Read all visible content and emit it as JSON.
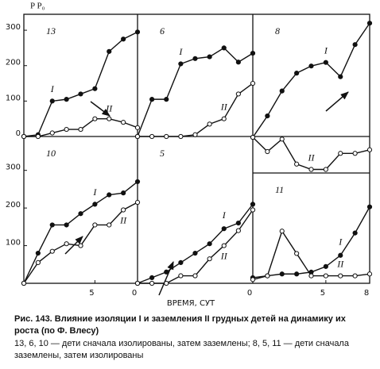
{
  "figure": {
    "y_label": "P P₀",
    "x_label": "ВРЕМЯ, СУТ"
  },
  "chart_data": [
    {
      "type": "line",
      "title": "13",
      "x": [
        0,
        1,
        2,
        3,
        4,
        5,
        6,
        7,
        8
      ],
      "xlim": [
        0,
        8
      ],
      "ylim": [
        0,
        345
      ],
      "yticks": [
        0,
        100,
        200,
        300
      ],
      "series": [
        {
          "name": "I",
          "color": "#111111",
          "values": [
            0,
            5,
            100,
            105,
            120,
            135,
            240,
            275,
            295
          ]
        },
        {
          "name": "II",
          "color": "#111111",
          "values": [
            0,
            0,
            10,
            20,
            20,
            50,
            50,
            40,
            25
          ]
        }
      ]
    },
    {
      "type": "line",
      "title": "6",
      "x": [
        0,
        1,
        2,
        3,
        4,
        5,
        6,
        7,
        8
      ],
      "xlim": [
        0,
        8
      ],
      "ylim": [
        0,
        345
      ],
      "series": [
        {
          "name": "I",
          "color": "#111111",
          "values": [
            0,
            105,
            105,
            205,
            220,
            225,
            250,
            210,
            235
          ]
        },
        {
          "name": "II",
          "color": "#111111",
          "values": [
            0,
            0,
            0,
            0,
            5,
            35,
            50,
            120,
            150
          ]
        }
      ]
    },
    {
      "type": "line",
      "title": "8",
      "x": [
        0,
        1,
        2,
        3,
        4,
        5,
        6,
        7,
        8
      ],
      "xlim": [
        0,
        8
      ],
      "ylim": [
        -100,
        345
      ],
      "series": [
        {
          "name": "I",
          "color": "#111111",
          "values": [
            0,
            60,
            130,
            180,
            200,
            210,
            170,
            260,
            320
          ]
        },
        {
          "name": "II",
          "color": "#111111",
          "values": [
            0,
            -40,
            -5,
            -75,
            -90,
            -90,
            -45,
            -45,
            -35
          ]
        }
      ]
    },
    {
      "type": "line",
      "title": "10",
      "x": [
        0,
        1,
        2,
        3,
        4,
        5,
        6,
        7,
        8
      ],
      "xlim": [
        0,
        8
      ],
      "ylim": [
        0,
        390
      ],
      "yticks": [
        100,
        200,
        300
      ],
      "xticks": [
        5
      ],
      "series": [
        {
          "name": "I",
          "color": "#111111",
          "values": [
            0,
            80,
            155,
            155,
            185,
            210,
            235,
            240,
            270
          ]
        },
        {
          "name": "II",
          "color": "#111111",
          "values": [
            0,
            55,
            85,
            105,
            100,
            155,
            155,
            195,
            215
          ]
        }
      ]
    },
    {
      "type": "line",
      "title": "5",
      "x": [
        0,
        1,
        2,
        3,
        4,
        5,
        6,
        7,
        8
      ],
      "xlim": [
        0,
        8
      ],
      "ylim": [
        0,
        390
      ],
      "xticks": [
        0
      ],
      "series": [
        {
          "name": "I",
          "color": "#111111",
          "values": [
            0,
            15,
            30,
            55,
            80,
            105,
            145,
            160,
            210
          ]
        },
        {
          "name": "II",
          "color": "#111111",
          "values": [
            0,
            0,
            0,
            20,
            20,
            65,
            100,
            140,
            195
          ]
        }
      ]
    },
    {
      "type": "line",
      "title": "11",
      "x": [
        0,
        1,
        2,
        3,
        4,
        5,
        6,
        7,
        8
      ],
      "xlim": [
        0,
        8
      ],
      "ylim": [
        0,
        296
      ],
      "xticks": [
        0,
        5,
        8
      ],
      "series": [
        {
          "name": "I",
          "color": "#111111",
          "values": [
            15,
            20,
            25,
            25,
            30,
            45,
            75,
            135,
            205
          ]
        },
        {
          "name": "II",
          "color": "#111111",
          "values": [
            10,
            20,
            140,
            80,
            20,
            20,
            20,
            20,
            25
          ]
        }
      ]
    }
  ],
  "caption": {
    "lines": [
      "Рис. 143. Влияние изоляции I и заземления II грудных детей на динамику их",
      "роста (по Ф. Влесу)",
      "13, 6, 10 — дети сначала изолированы, затем заземлены; 8, 5, 11 — дети сначала",
      "заземлены, затем изолированы"
    ]
  }
}
